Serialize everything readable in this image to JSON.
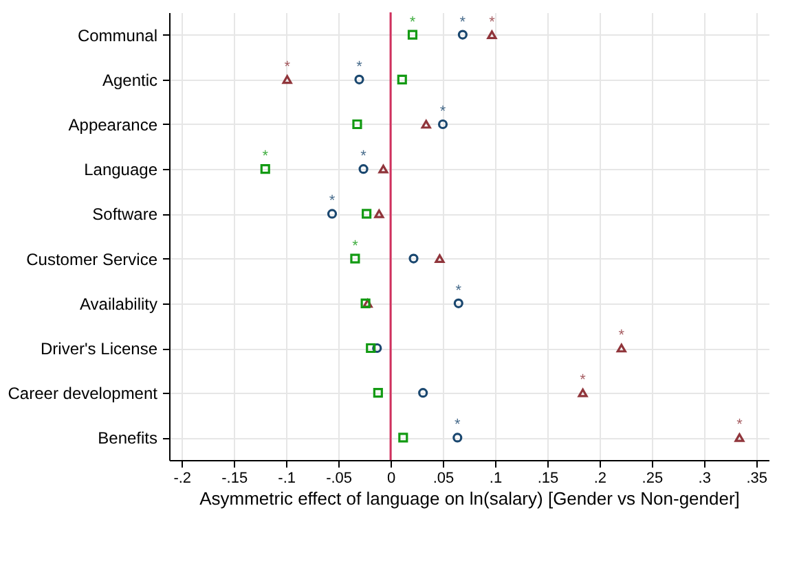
{
  "chart_data": {
    "type": "scatter",
    "xlabel": "Asymmetric effect of language on ln(salary) [Gender vs Non-gender]",
    "categories": [
      "Communal",
      "Agentic",
      "Appearance",
      "Language",
      "Software",
      "Customer Service",
      "Availability",
      "Driver's License",
      "Career development",
      "Benefits"
    ],
    "orientation": "horizontal",
    "series": [
      {
        "color": "#1a476f",
        "marker": "circle",
        "values": [
          0.069,
          -0.03,
          0.05,
          -0.026,
          -0.056,
          0.022,
          0.065,
          -0.013,
          0.031,
          0.064
        ]
      },
      {
        "color": "#90353b",
        "marker": "triangle",
        "values": [
          0.097,
          -0.099,
          0.034,
          -0.007,
          -0.011,
          0.047,
          -0.022,
          0.221,
          0.184,
          0.334
        ]
      },
      {
        "color": "#139a13",
        "marker": "square",
        "values": [
          0.021,
          0.011,
          -0.032,
          -0.12,
          -0.023,
          -0.034,
          -0.024,
          -0.019,
          -0.012,
          0.012
        ]
      }
    ],
    "xlim": [
      -0.212,
      0.362
    ],
    "xticks": [
      {
        "value": -0.2,
        "label": "-.2"
      },
      {
        "value": -0.15,
        "label": "-.15"
      },
      {
        "value": -0.1,
        "label": "-.1"
      },
      {
        "value": -0.05,
        "label": "-.05"
      },
      0,
      {
        "value": 0.05,
        "label": ".05"
      },
      {
        "value": 0.1,
        "label": ".1"
      },
      {
        "value": 0.15,
        "label": ".15"
      },
      {
        "value": 0.2,
        "label": ".2"
      },
      {
        "value": 0.25,
        "label": ".25"
      },
      {
        "value": 0.3,
        "label": ".3"
      },
      {
        "value": 0.35,
        "label": ".35"
      }
    ],
    "ref_lines": [
      {
        "axis": "x",
        "value": 0,
        "color": "#d1305e"
      }
    ],
    "annotations": [
      {
        "text": "*",
        "x": 0.021,
        "y": "Communal"
      },
      {
        "text": "*",
        "x": 0.069,
        "y": "Communal"
      },
      {
        "text": "*",
        "x": 0.097,
        "y": "Communal"
      },
      {
        "text": "*",
        "x": -0.099,
        "y": "Agentic"
      },
      {
        "text": "*",
        "x": -0.03,
        "y": "Agentic"
      },
      {
        "text": "*",
        "x": 0.05,
        "y": "Appearance"
      },
      {
        "text": "*",
        "x": -0.12,
        "y": "Language"
      },
      {
        "text": "*",
        "x": -0.026,
        "y": "Language"
      },
      {
        "text": "*",
        "x": -0.056,
        "y": "Software"
      },
      {
        "text": "*",
        "x": -0.034,
        "y": "Customer Service"
      },
      {
        "text": "*",
        "x": 0.065,
        "y": "Availability"
      },
      {
        "text": "*",
        "x": 0.221,
        "y": "Driver's License"
      },
      {
        "text": "*",
        "x": 0.184,
        "y": "Career development"
      },
      {
        "text": "*",
        "x": 0.064,
        "y": "Benefits"
      },
      {
        "text": "*",
        "x": 0.334,
        "y": "Benefits"
      }
    ],
    "grid": true,
    "legend": false
  }
}
